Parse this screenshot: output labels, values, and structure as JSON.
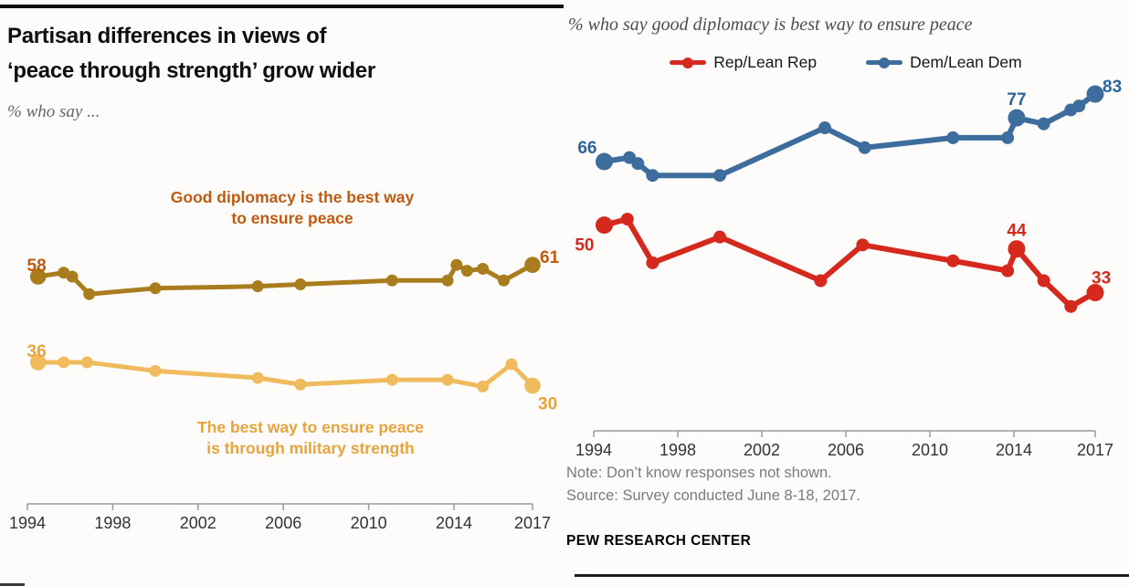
{
  "left_panel": {
    "title_line1": "Partisan differences in views of",
    "title_line2": "‘peace through strength’ grow wider",
    "subtitle": "% who say ..."
  },
  "right_panel": {
    "title": "% who say good diplomacy is best way to ensure peace",
    "legend": [
      {
        "label": "Rep/Lean Rep",
        "color": "#d6291e"
      },
      {
        "label": "Dem/Lean Dem",
        "color": "#3d6d9d"
      }
    ],
    "note": "Note: Don’t know responses not shown.",
    "source": "Source: Survey conducted June 8-18, 2017.",
    "brand": "PEW RESEARCH CENTER"
  },
  "chart_data": [
    {
      "type": "line",
      "title": "Partisan differences in views of 'peace through strength' grow wider",
      "subtitle": "% who say ...",
      "xlabel": "",
      "ylabel": "%",
      "x_ticks": [
        1994,
        1998,
        2002,
        2006,
        2010,
        2014,
        2017
      ],
      "x_range": [
        1994,
        2017
      ],
      "grid": false,
      "series": [
        {
          "name": "Good diplomacy is the best way to ensure peace",
          "color": "#a97c1d",
          "label_color": "#c05a10",
          "annotation_lines": [
            "Good diplomacy is the best way",
            "to ensure peace"
          ],
          "points": [
            [
              1994.5,
              58
            ],
            [
              1995.7,
              59
            ],
            [
              1996.1,
              58
            ],
            [
              1996.9,
              53.5
            ],
            [
              2000,
              55
            ],
            [
              2004.8,
              55.5
            ],
            [
              2006.8,
              56
            ],
            [
              2011.1,
              57
            ],
            [
              2013.7,
              57
            ],
            [
              2014.1,
              61
            ],
            [
              2014.5,
              59.5
            ],
            [
              2015.1,
              60
            ],
            [
              2015.9,
              57
            ],
            [
              2017,
              61
            ]
          ],
          "point_labels": [
            {
              "year": 1994.5,
              "value": 58,
              "text": "58",
              "pos": "left-above"
            },
            {
              "year": 2017,
              "value": 61,
              "text": "61",
              "pos": "right-above"
            }
          ]
        },
        {
          "name": "The best way to ensure peace is through military strength",
          "color": "#f0bb5c",
          "label_color": "#e8a33c",
          "annotation_lines": [
            "The best way to ensure peace",
            "is through military strength"
          ],
          "points": [
            [
              1994.5,
              36
            ],
            [
              1995.7,
              36
            ],
            [
              1996.8,
              36
            ],
            [
              2000,
              33.8
            ],
            [
              2004.8,
              32
            ],
            [
              2006.8,
              30.3
            ],
            [
              2011.1,
              31.5
            ],
            [
              2013.7,
              31.5
            ],
            [
              2015.1,
              29.8
            ],
            [
              2016.2,
              35.5
            ],
            [
              2017,
              30
            ]
          ],
          "point_labels": [
            {
              "year": 1994.5,
              "value": 36,
              "text": "36",
              "pos": "left-above"
            },
            {
              "year": 2017,
              "value": 30,
              "text": "30",
              "pos": "right-below"
            }
          ]
        }
      ]
    },
    {
      "type": "line",
      "title": "% who say good diplomacy is best way to ensure peace",
      "xlabel": "",
      "ylabel": "%",
      "x_ticks": [
        1994,
        1998,
        2002,
        2006,
        2010,
        2014,
        2017
      ],
      "x_range": [
        1994,
        2017
      ],
      "grid": false,
      "legend_position": "top",
      "series": [
        {
          "name": "Rep/Lean Rep",
          "color": "#d6291e",
          "label_color": "#d6291e",
          "points": [
            [
              1994.5,
              50
            ],
            [
              1995.6,
              51.5
            ],
            [
              1996.8,
              40.5
            ],
            [
              2000,
              47
            ],
            [
              2004.8,
              36
            ],
            [
              2006.8,
              45
            ],
            [
              2011.1,
              41
            ],
            [
              2013.7,
              38.5
            ],
            [
              2014.1,
              44
            ],
            [
              2015.1,
              36
            ],
            [
              2016.1,
              29.5
            ],
            [
              2017,
              33
            ]
          ],
          "point_labels": [
            {
              "year": 1994.5,
              "value": 50,
              "text": "50",
              "pos": "left-below"
            },
            {
              "year": 2014.1,
              "value": 44,
              "text": "44",
              "pos": "above"
            },
            {
              "year": 2017,
              "value": 33,
              "text": "33",
              "pos": "right-up"
            }
          ]
        },
        {
          "name": "Dem/Lean Dem",
          "color": "#3d6d9d",
          "label_color": "#2f639e",
          "points": [
            [
              1994.5,
              66
            ],
            [
              1995.7,
              67
            ],
            [
              1996.1,
              65.5
            ],
            [
              1996.8,
              62.5
            ],
            [
              2000,
              62.5
            ],
            [
              2005,
              74.5
            ],
            [
              2006.9,
              69.5
            ],
            [
              2011.1,
              72
            ],
            [
              2013.7,
              72
            ],
            [
              2014.1,
              77
            ],
            [
              2015.1,
              75.5
            ],
            [
              2016.1,
              79
            ],
            [
              2016.4,
              80
            ],
            [
              2017,
              83
            ]
          ],
          "point_labels": [
            {
              "year": 1994.5,
              "value": 66,
              "text": "66",
              "pos": "left-up"
            },
            {
              "year": 2014.1,
              "value": 77,
              "text": "77",
              "pos": "above"
            },
            {
              "year": 2017,
              "value": 83,
              "text": "83",
              "pos": "right-above"
            }
          ]
        }
      ]
    }
  ]
}
